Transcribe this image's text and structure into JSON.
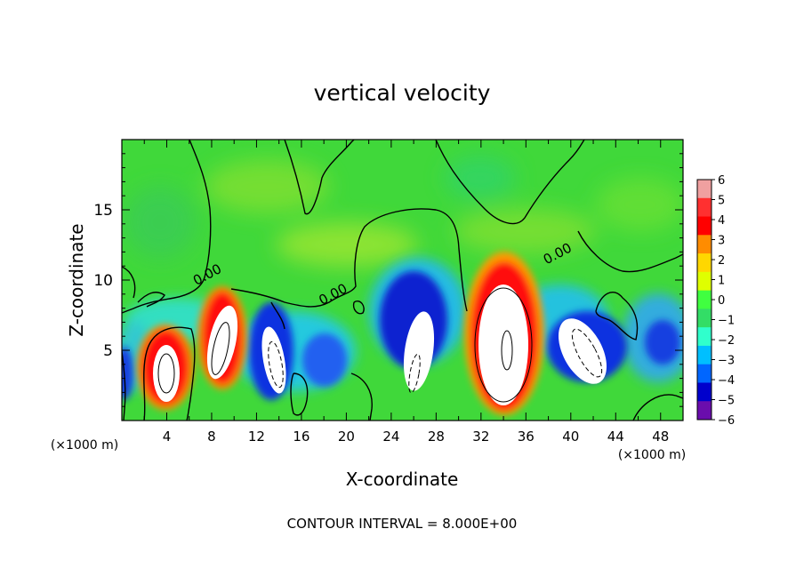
{
  "chart_data": {
    "type": "heatmap",
    "title": "vertical velocity",
    "xlabel": "X-coordinate",
    "ylabel": "Z-coordinate",
    "x_unit": "(×1000 m)",
    "footer": "CONTOUR INTERVAL = 8.000E+00",
    "xlim": [
      0,
      50
    ],
    "ylim": [
      0,
      20
    ],
    "x_ticks": [
      4,
      8,
      12,
      16,
      20,
      24,
      28,
      32,
      36,
      40,
      44,
      48
    ],
    "y_ticks": [
      5,
      10,
      15
    ],
    "colorbar": {
      "min": -6,
      "max": 6,
      "ticks": [
        6,
        5,
        4,
        3,
        2,
        1,
        0,
        -1,
        -2,
        -3,
        -4,
        -5,
        -6
      ],
      "tick_labels": [
        "6",
        "5",
        "4",
        "3",
        "2",
        "1",
        "0",
        "−1",
        "−2",
        "−3",
        "−4",
        "−5",
        "−6"
      ],
      "colors": [
        "#f0a0a0",
        "#ff3030",
        "#ff0000",
        "#ff8c00",
        "#ffd700",
        "#dfff00",
        "#40ff40",
        "#33dd66",
        "#30ffcc",
        "#00bfff",
        "#0066ff",
        "#0000cc",
        "#6a0dad"
      ]
    },
    "contour_labels": [
      {
        "text": "0.00",
        "x": 7.8,
        "z": 10.1
      },
      {
        "text": "0.00",
        "x": 19.0,
        "z": 8.7
      },
      {
        "text": "0.00",
        "x": 39.0,
        "z": 11.6
      }
    ],
    "cells": [
      {
        "x": 4.0,
        "z": 3.8,
        "rx": 1.6,
        "rz": 3.2,
        "value": 6
      },
      {
        "x": 8.9,
        "z": 5.8,
        "rx": 1.5,
        "rz": 3.6,
        "value": 6
      },
      {
        "x": 13.8,
        "z": 4.5,
        "rx": 1.2,
        "rz": 3.0,
        "value": -6
      },
      {
        "x": 26.3,
        "z": 4.8,
        "rx": 1.5,
        "rz": 3.5,
        "value": -6
      },
      {
        "x": 34.0,
        "z": 5.5,
        "rx": 3.0,
        "rz": 6.0,
        "value": 6
      },
      {
        "x": 41.5,
        "z": 5.0,
        "rx": 2.3,
        "rz": 3.0,
        "value": -6
      },
      {
        "x": 19.5,
        "z": 12.0,
        "rx": 4.0,
        "rz": 2.0,
        "value": 1
      },
      {
        "x": 36.0,
        "z": 15.0,
        "rx": 4.0,
        "rz": 2.0,
        "value": 1
      }
    ]
  }
}
